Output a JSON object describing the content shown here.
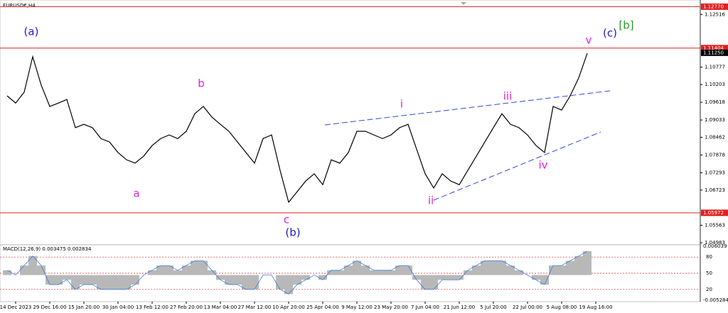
{
  "chart_data": {
    "type": "line",
    "title": "EURUSD€,H4",
    "categories": [
      null,
      "14 Dec 2023",
      null,
      null,
      null,
      "29 Dec 16:00",
      null,
      null,
      null,
      "15 Jan 20:00",
      null,
      null,
      null,
      "30 Jan 04:00",
      null,
      null,
      null,
      "13 Feb 12:00",
      null,
      null,
      null,
      "27 Feb 20:00",
      null,
      null,
      null,
      "13 Mar 04:00",
      null,
      null,
      null,
      "27 Mar 12:00",
      null,
      null,
      null,
      "10 Apr 20:00",
      null,
      null,
      null,
      "25 Apr 04:00",
      null,
      null,
      null,
      "9 May 12:00",
      null,
      null,
      null,
      "23 May 20:00",
      null,
      null,
      null,
      "7 Jun 04:00",
      null,
      null,
      null,
      "21 Jun 12:00",
      null,
      null,
      null,
      "5 Jul 20:00",
      null,
      null,
      null,
      "22 Jul 00:00",
      null,
      null,
      null,
      "5 Aug 08:00",
      null,
      null,
      null,
      "19 Aug 16:00"
    ],
    "series": [
      {
        "name": "EURUSD",
        "color": "#000000",
        "values": [
          1.0983,
          1.0959,
          1.0995,
          1.1112,
          1.1018,
          1.0948,
          1.0959,
          1.0971,
          1.0878,
          1.0889,
          1.0878,
          1.0842,
          1.0831,
          1.0796,
          1.0772,
          1.0761,
          1.0784,
          1.0819,
          1.0842,
          1.0854,
          1.0842,
          1.0866,
          1.0924,
          1.0948,
          1.0913,
          1.0889,
          1.0866,
          1.0831,
          1.0796,
          1.0761,
          1.0842,
          1.0854,
          1.0737,
          1.0632,
          1.0667,
          1.0702,
          1.0726,
          1.069,
          1.0772,
          1.0761,
          1.0796,
          1.0866,
          1.0866,
          1.0854,
          1.0842,
          1.0854,
          1.0878,
          1.0889,
          1.0807,
          1.0726,
          1.0679,
          1.0726,
          1.0702,
          1.069,
          1.0737,
          1.0784,
          1.0831,
          1.0878,
          1.0924,
          1.0889,
          1.0878,
          1.0854,
          1.0819,
          1.0796,
          1.0948,
          1.0936,
          1.0983,
          1.1042,
          1.1123,
          null
        ]
      }
    ],
    "ylim": [
      1.04915,
      1.1299
    ],
    "yticks": [
      1.12516,
      1.10777,
      1.10203,
      1.09618,
      1.09033,
      1.08462,
      1.07878,
      1.07293,
      1.06723,
      1.05563,
      1.04983
    ],
    "price_levels": [
      {
        "value": 1.1277,
        "label": "1.12770"
      },
      1.11404,
      1.05972
    ],
    "current_price": {
      "value": 1.1125,
      "label": "1.11250"
    },
    "annotations": [
      {
        "text": "(a)",
        "color": "#1c1cc8"
      },
      {
        "text": "a",
        "color": "#e020e0"
      },
      {
        "text": "b",
        "color": "#e020e0"
      },
      {
        "text": "c",
        "color": "#e020e0"
      },
      {
        "text": "(b)",
        "color": "#1c1cc8"
      },
      {
        "text": "i",
        "color": "#e020e0"
      },
      {
        "text": "ii",
        "color": "#e020e0"
      },
      {
        "text": "iii",
        "color": "#e020e0"
      },
      {
        "text": "iv",
        "color": "#e020e0"
      },
      {
        "text": "v",
        "color": "#e020e0"
      },
      {
        "text": "(c)",
        "color": "#1c1cc8"
      },
      {
        "text": "[b]",
        "color": "#2a9a2a"
      }
    ],
    "macd": {
      "title": "MACD(12,26,9) 0.003475 0.002834",
      "color": "#b8b8b8",
      "values": [
        0.001,
        0,
        0.002,
        0.004,
        0.002,
        -0.002,
        -0.002,
        -0.001,
        -0.003,
        -0.002,
        -0.002,
        -0.003,
        -0.003,
        -0.003,
        -0.003,
        -0.002,
        0,
        0.001,
        0.002,
        0.002,
        0.001,
        0.002,
        0.003,
        0.003,
        0.001,
        -0.001,
        -0.002,
        -0.002,
        -0.003,
        -0.003,
        0,
        0,
        -0.003,
        -0.004,
        -0.002,
        -0.001,
        0,
        -0.001,
        0.001,
        0.001,
        0.002,
        0.003,
        0.002,
        0.001,
        0.001,
        0.001,
        0.002,
        0.002,
        -0.001,
        -0.003,
        -0.003,
        -0.001,
        -0.001,
        -0.001,
        0.001,
        0.002,
        0.003,
        0.003,
        0.003,
        0.002,
        0.001,
        0,
        -0.001,
        -0.002,
        0.002,
        0.002,
        0.003,
        0.004,
        0.005,
        null
      ],
      "ylim": [
        -0.005284,
        0.006039
      ],
      "levels_ylim": [
        0,
        100
      ],
      "levels": [
        80,
        50,
        20
      ]
    }
  }
}
